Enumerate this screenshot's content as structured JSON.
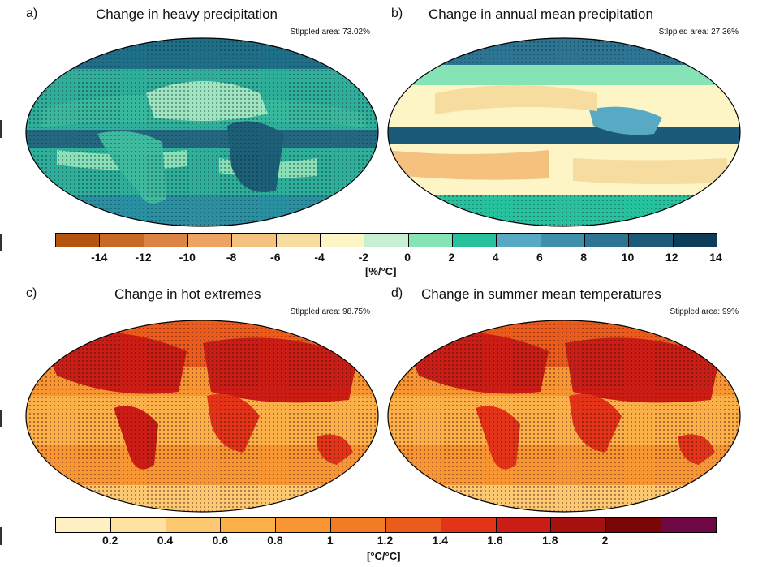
{
  "panels": {
    "a": {
      "letter": "a)",
      "title": "Change in heavy precipitation",
      "stippled": "Stlppled area: 73.02%"
    },
    "b": {
      "letter": "b)",
      "title": "Change in annual mean precipitation",
      "stippled": "Stlppled area: 27.36%"
    },
    "c": {
      "letter": "c)",
      "title": "Change in hot extremes",
      "stippled": "Stlppled area: 98.75%"
    },
    "d": {
      "letter": "d)",
      "title": "Change in summer mean temperatures",
      "stippled": "Stippled area: 99%"
    }
  },
  "precip_colorbar": {
    "colors": [
      "#b4540f",
      "#c86a26",
      "#dc8445",
      "#eda462",
      "#f4c27e",
      "#f7dc9f",
      "#fdf5c6",
      "#c7f0d2",
      "#86e3b6",
      "#27c29d",
      "#58aac4",
      "#3f8fad",
      "#2d7592",
      "#1b5a78",
      "#0e3d58"
    ],
    "ticks": [
      "-14",
      "-12",
      "-10",
      "-8",
      "-6",
      "-4",
      "-2",
      "0",
      "2",
      "4",
      "6",
      "8",
      "10",
      "12",
      "14"
    ],
    "unit": "[%/°C]"
  },
  "temp_colorbar": {
    "colors": [
      "#fff0c4",
      "#fde2a1",
      "#fcc972",
      "#fbb04a",
      "#f79633",
      "#f27c25",
      "#ea5b1c",
      "#e3341a",
      "#c91d16",
      "#a5110f",
      "#7a0608",
      "#6d0845"
    ],
    "ticks": [
      "0.2",
      "0.4",
      "0.6",
      "0.8",
      "1",
      "1.2",
      "1.4",
      "1.6",
      "1.8",
      "2"
    ],
    "unit": "[°C/°C]"
  }
}
